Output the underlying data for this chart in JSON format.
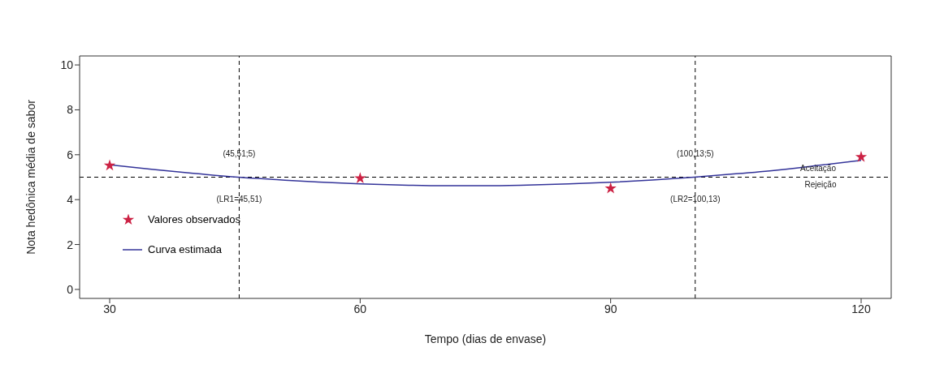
{
  "chart_data": {
    "type": "scatter",
    "xlabel": "Tempo (dias de envase)",
    "ylabel": "Nota hedônica média de sabor",
    "xlim": [
      26.4,
      123.6
    ],
    "xticks": [
      30,
      60,
      90,
      120
    ],
    "ylim": [
      -0.4,
      10.4
    ],
    "yticks": [
      0,
      2,
      4,
      6,
      8,
      10
    ],
    "grid": false,
    "legend": "left",
    "series": [
      {
        "name": "Valores observados",
        "marker": "star",
        "color": "#cc2244",
        "x": [
          30,
          60,
          90,
          120
        ],
        "values": [
          5.52,
          4.95,
          4.5,
          5.9
        ]
      },
      {
        "name": "Curva estimada",
        "type": "line",
        "marker": "none",
        "line_style": "solid",
        "color": "#333399",
        "x": [
          30,
          35,
          40,
          45,
          50,
          55,
          60,
          65,
          70,
          75,
          80,
          85,
          90,
          95,
          100,
          105,
          110,
          115,
          120
        ],
        "values": [
          5.55,
          5.35,
          5.17,
          5.01,
          4.89,
          4.78,
          4.7,
          4.65,
          4.62,
          4.62,
          4.65,
          4.7,
          4.77,
          4.87,
          5.0,
          5.15,
          5.32,
          5.53,
          5.75
        ]
      }
    ],
    "ref_lines": [
      {
        "axis": "x",
        "value": 45.51,
        "line_style": "dashed",
        "color": "#000000"
      },
      {
        "axis": "x",
        "value": 100.13,
        "line_style": "dashed",
        "color": "#000000"
      },
      {
        "axis": "y",
        "value": 5,
        "line_style": "dashed",
        "color": "#000000"
      }
    ],
    "annotations": [
      "(45,51;5)",
      "(LR1=45,51)",
      "(100,13;5)",
      "(LR2=100,13)",
      "Aceitação",
      "Rejeição"
    ]
  }
}
